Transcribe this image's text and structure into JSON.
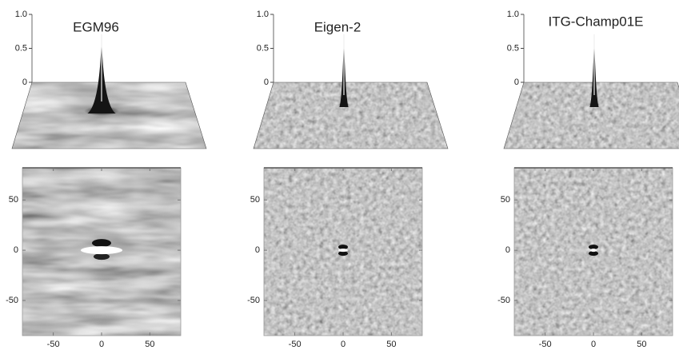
{
  "zlim": [
    0,
    1
  ],
  "xlim": [
    -82,
    82
  ],
  "ylim": [
    -85,
    82
  ],
  "panels": [
    {
      "title": "EGM96",
      "zticks": [
        0,
        0.5,
        {
          "value": 1,
          "label": "1.0"
        }
      ],
      "xticks": [
        -50,
        0,
        50
      ],
      "yticks": [
        50,
        0,
        -50
      ]
    },
    {
      "title": "Eigen-2",
      "zticks": [
        0,
        0.5,
        {
          "value": 1,
          "label": "1.0"
        }
      ],
      "xticks": [
        -50,
        0,
        50
      ],
      "yticks": [
        50,
        0,
        -50
      ]
    },
    {
      "title": "ITG-Champ01E",
      "zticks": [
        0,
        0.5,
        {
          "value": 1,
          "label": "1.0"
        }
      ],
      "xticks": [
        -50,
        0,
        50
      ],
      "yticks": [
        50,
        0,
        -50
      ]
    }
  ]
}
